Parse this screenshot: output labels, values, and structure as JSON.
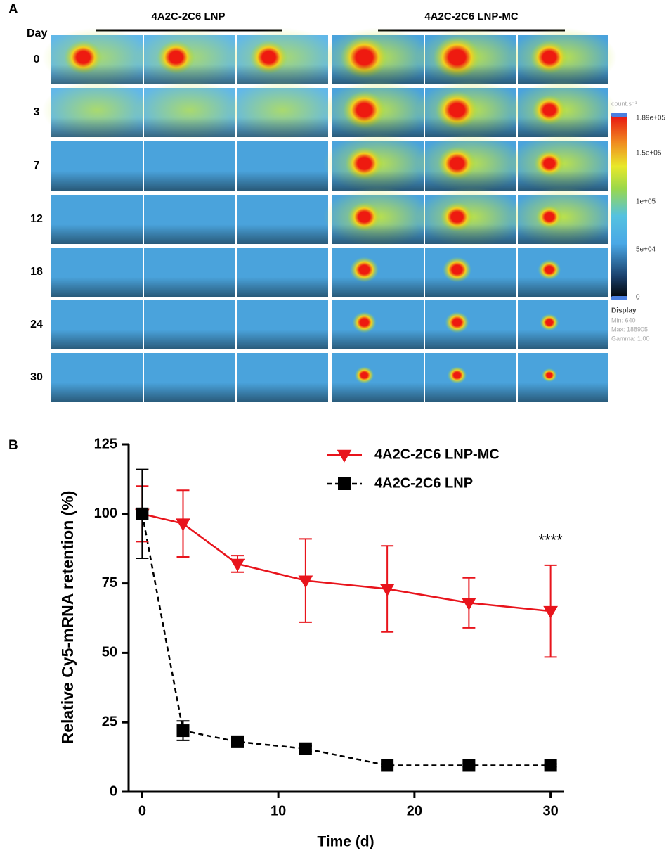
{
  "panel_a": {
    "label": "A",
    "day_label": "Day",
    "groups": [
      "4A2C-2C6 LNP",
      "4A2C-2C6 LNP-MC"
    ],
    "days": [
      0,
      3,
      7,
      12,
      18,
      24,
      30
    ],
    "colorbar": {
      "unit": "count.s⁻¹",
      "ticks": [
        "1.89e+05",
        "1.5e+05",
        "1e+05",
        "5e+04",
        "0"
      ]
    },
    "display": {
      "title": "Display",
      "lines": [
        "Min: 640",
        "Max: 188905",
        "Gamma: 1.00"
      ]
    }
  },
  "chart_data": {
    "type": "line",
    "label": "B",
    "x_label": "Time (d)",
    "y_label": "Relative Cy5-mRNA retention (%)",
    "x": [
      0,
      3,
      7,
      12,
      18,
      24,
      30
    ],
    "series": [
      {
        "name": "4A2C-2C6 LNP-MC",
        "color": "#e8141c",
        "marker": "triangle-down",
        "line_style": "solid",
        "values": [
          100,
          96.5,
          82,
          76,
          73,
          68,
          65
        ],
        "errors": [
          10,
          12,
          3,
          15,
          15.5,
          9,
          16.5
        ]
      },
      {
        "name": "4A2C-2C6 LNP",
        "color": "#000000",
        "marker": "square",
        "line_style": "dashed",
        "values": [
          100,
          22,
          18,
          15.5,
          9.5,
          9.5,
          9.5
        ],
        "errors": [
          16,
          3.5,
          1,
          1,
          0.5,
          0.5,
          0.5
        ]
      }
    ],
    "annotation": "****",
    "xlim": [
      -1,
      31
    ],
    "xticks": [
      0,
      10,
      20,
      30
    ],
    "ylim": [
      0,
      125
    ],
    "yticks": [
      0,
      25,
      50,
      75,
      100,
      125
    ],
    "legend": "top-right"
  }
}
